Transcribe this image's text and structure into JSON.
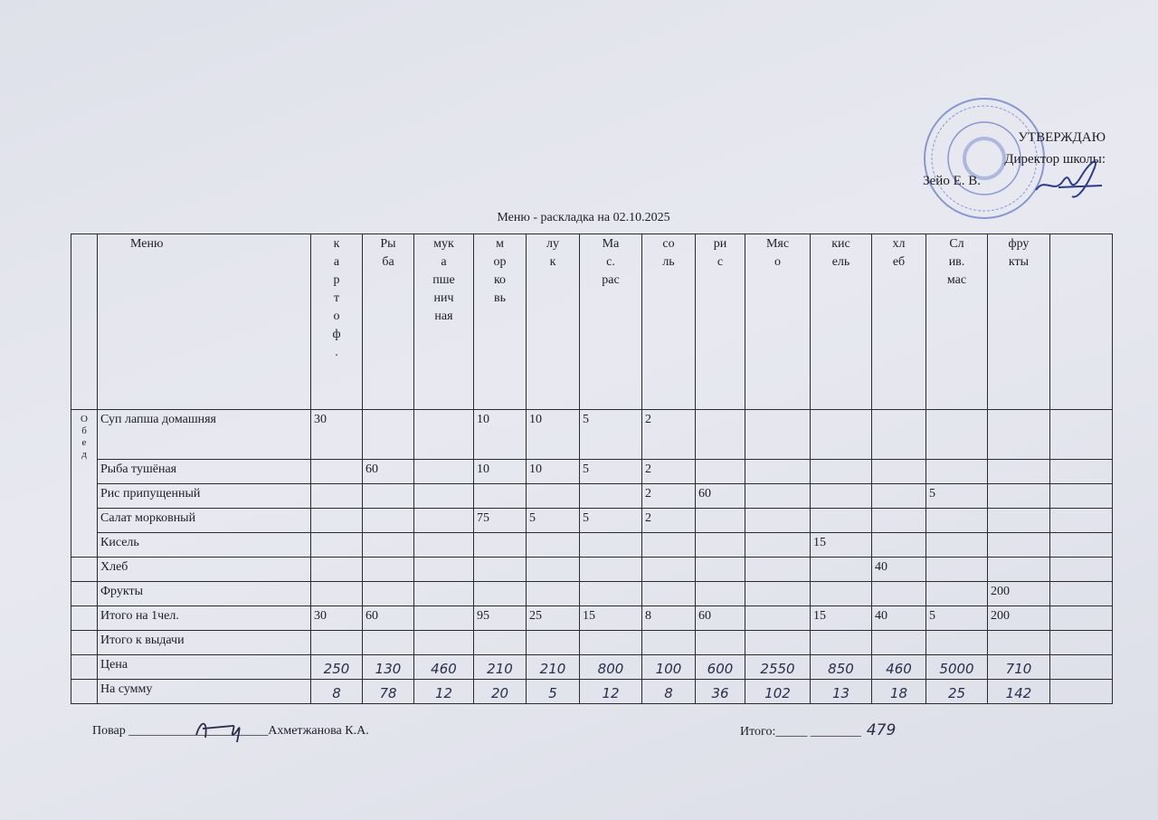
{
  "approval": {
    "title": "УТВЕРЖДАЮ",
    "role": "Директор школы:",
    "name": "Зейо Е. В."
  },
  "title": "Меню - раскладка на 02.10.2025",
  "table": {
    "headers": [
      "Меню",
      "к\nа\nр\nт\nо\nф\n.",
      "Ры\nба",
      "мук\nа\nпше\nнич\nная",
      "м\nор\nко\nвь",
      "лу\nк",
      "Ма\nс.\nрас",
      "со\nль",
      "ри\nс",
      "Мяс\nо",
      "кис\nель",
      "хл\nеб",
      "Сл\nив.\nмас",
      "фру\nкты",
      ""
    ],
    "section_label": "О\nб\nе\nд",
    "rows": [
      {
        "name": "Суп лапша домашняя",
        "values": [
          "30",
          "",
          "",
          "10",
          "10",
          "5",
          "2",
          "",
          "",
          "",
          "",
          "",
          "",
          ""
        ]
      },
      {
        "name": "Рыба тушёная",
        "values": [
          "",
          "60",
          "",
          "10",
          "10",
          "5",
          "2",
          "",
          "",
          "",
          "",
          "",
          "",
          ""
        ]
      },
      {
        "name": "Рис припущенный",
        "values": [
          "",
          "",
          "",
          "",
          "",
          "",
          "2",
          "60",
          "",
          "",
          "",
          "5",
          "",
          ""
        ]
      },
      {
        "name": "Салат морковный",
        "values": [
          "",
          "",
          "",
          "75",
          "5",
          "5",
          "2",
          "",
          "",
          "",
          "",
          "",
          "",
          ""
        ]
      },
      {
        "name": "Кисель",
        "values": [
          "",
          "",
          "",
          "",
          "",
          "",
          "",
          "",
          "",
          "15",
          "",
          "",
          "",
          ""
        ]
      },
      {
        "name": "Хлеб",
        "values": [
          "",
          "",
          "",
          "",
          "",
          "",
          "",
          "",
          "",
          "",
          "40",
          "",
          "",
          ""
        ]
      },
      {
        "name": "Фрукты",
        "values": [
          "",
          "",
          "",
          "",
          "",
          "",
          "",
          "",
          "",
          "",
          "",
          "",
          "200",
          ""
        ]
      },
      {
        "name": "Итого на 1чел.",
        "values": [
          "30",
          "60",
          "",
          "95",
          "25",
          "15",
          "8",
          "60",
          "",
          "15",
          "40",
          "5",
          "200",
          ""
        ]
      },
      {
        "name": "Итого к выдачи",
        "values": [
          "",
          "",
          "",
          "",
          "",
          "",
          "",
          "",
          "",
          "",
          "",
          "",
          "",
          ""
        ]
      }
    ],
    "price": {
      "name": "Цена",
      "values": [
        "250",
        "130",
        "460",
        "210",
        "210",
        "800",
        "100",
        "600",
        "2550",
        "850",
        "460",
        "5000",
        "710",
        ""
      ]
    },
    "sum": {
      "name": "На сумму",
      "values": [
        "8",
        "78",
        "12",
        "20",
        "5",
        "12",
        "8",
        "36",
        "102",
        "13",
        "18",
        "25",
        "142",
        ""
      ]
    }
  },
  "footer": {
    "cook_label": "Повар",
    "cook_line": "______________________",
    "cook_name": "Ахметжанова К.А.",
    "total_label": "Итого:",
    "total_line": "_____ ________",
    "total_value": "479"
  },
  "colors": {
    "stamp": "#3b55b8",
    "ink": "#2b2d4a"
  }
}
